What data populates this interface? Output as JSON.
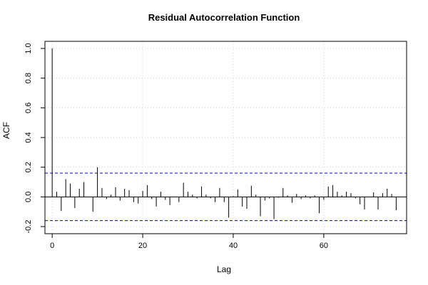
{
  "chart_data": {
    "type": "bar",
    "title": "Residual Autocorrelation Function",
    "xlabel": "Lag",
    "ylabel": "ACF",
    "xlim": [
      -1.6,
      78.3
    ],
    "ylim": [
      -0.2,
      1.0
    ],
    "x_ticks": [
      0,
      20,
      40,
      60
    ],
    "y_ticks": [
      -0.2,
      0.0,
      0.2,
      0.4,
      0.6,
      0.8,
      1.0
    ],
    "x_tick_labels": [
      "0",
      "20",
      "40",
      "60"
    ],
    "y_tick_labels": [
      "-0.2",
      "0.0",
      "0.2",
      "0.4",
      "0.6",
      "0.8",
      "1.0"
    ],
    "grid": true,
    "confidence_band": {
      "upper": 0.16,
      "lower": -0.16,
      "color": "#0000cc"
    },
    "lags": [
      0,
      1,
      2,
      3,
      4,
      5,
      6,
      7,
      8,
      9,
      10,
      11,
      12,
      13,
      14,
      15,
      16,
      17,
      18,
      19,
      20,
      21,
      22,
      23,
      24,
      25,
      26,
      27,
      28,
      29,
      30,
      31,
      32,
      33,
      34,
      35,
      36,
      37,
      38,
      39,
      40,
      41,
      42,
      43,
      44,
      45,
      46,
      47,
      48,
      49,
      50,
      51,
      52,
      53,
      54,
      55,
      56,
      57,
      58,
      59,
      60,
      61,
      62,
      63,
      64,
      65,
      66,
      67,
      68,
      69,
      70,
      71,
      72,
      73,
      74,
      75,
      76
    ],
    "values": [
      1.0,
      0.035,
      -0.095,
      0.12,
      0.09,
      -0.075,
      0.055,
      0.1,
      0.0,
      -0.1,
      0.2,
      0.06,
      -0.015,
      0.015,
      0.065,
      -0.025,
      0.055,
      0.045,
      -0.035,
      -0.045,
      0.04,
      0.08,
      -0.015,
      -0.065,
      0.035,
      -0.02,
      -0.055,
      0.0,
      -0.035,
      0.095,
      0.035,
      0.015,
      -0.01,
      0.07,
      0.015,
      -0.01,
      -0.035,
      0.06,
      -0.035,
      -0.14,
      0.005,
      0.05,
      -0.065,
      -0.08,
      0.075,
      0.015,
      -0.13,
      -0.025,
      -0.01,
      -0.15,
      -0.005,
      0.06,
      0.01,
      -0.04,
      0.02,
      -0.015,
      0.01,
      -0.01,
      0.01,
      -0.11,
      -0.02,
      0.07,
      0.08,
      0.035,
      0.01,
      0.035,
      0.025,
      -0.01,
      -0.05,
      -0.085,
      0.0,
      0.03,
      -0.085,
      0.025,
      0.055,
      0.02,
      -0.09
    ]
  }
}
